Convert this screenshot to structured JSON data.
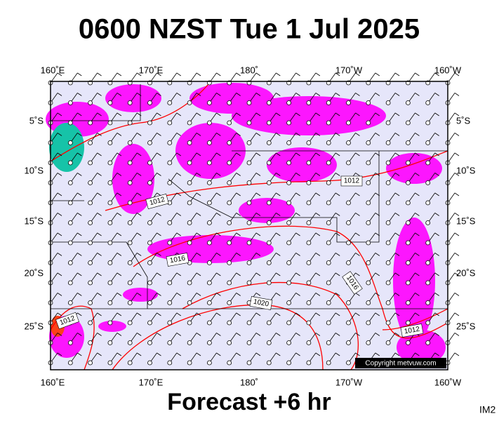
{
  "title": "0600 NZST Tue 1 Jul 2025",
  "longitude_labels": [
    "160˚E",
    "170˚E",
    "180˚",
    "170˚W",
    "160˚W"
  ],
  "latitude_labels": [
    "5˚S",
    "10˚S",
    "15˚S",
    "20˚S",
    "25˚S"
  ],
  "isobar_labels": [
    "1012",
    "1012",
    "1016",
    "1016",
    "1020",
    "1012",
    "1012"
  ],
  "copyright": "Copyright metvuw.com",
  "footer": "Forecast +6 hr",
  "image_id": "IM2"
}
